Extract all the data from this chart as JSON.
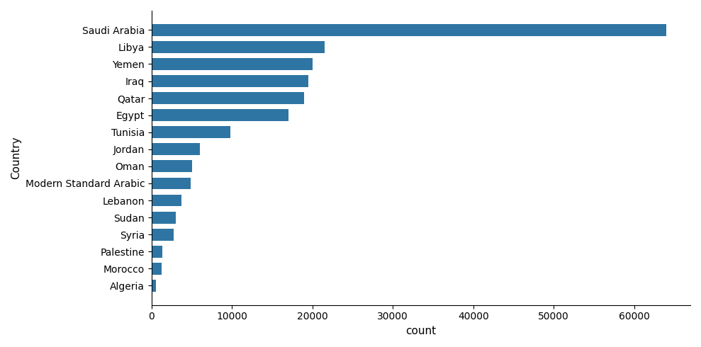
{
  "categories": [
    "Saudi Arabia",
    "Libya",
    "Yemen",
    "Iraq",
    "Qatar",
    "Egypt",
    "Tunisia",
    "Jordan",
    "Oman",
    "Modern Standard Arabic",
    "Lebanon",
    "Sudan",
    "Syria",
    "Palestine",
    "Morocco",
    "Algeria"
  ],
  "values": [
    64000,
    21500,
    20000,
    19500,
    19000,
    17000,
    9800,
    6000,
    5000,
    4900,
    3700,
    3000,
    2700,
    1300,
    1200,
    500
  ],
  "bar_color": "#2e75a3",
  "xlabel": "count",
  "ylabel": "Country",
  "background_color": "#ffffff",
  "figsize": [
    9.89,
    4.9
  ],
  "dpi": 100,
  "xticks": [
    0,
    10000,
    20000,
    30000,
    40000,
    50000,
    60000
  ],
  "xlim": [
    0,
    67000
  ]
}
